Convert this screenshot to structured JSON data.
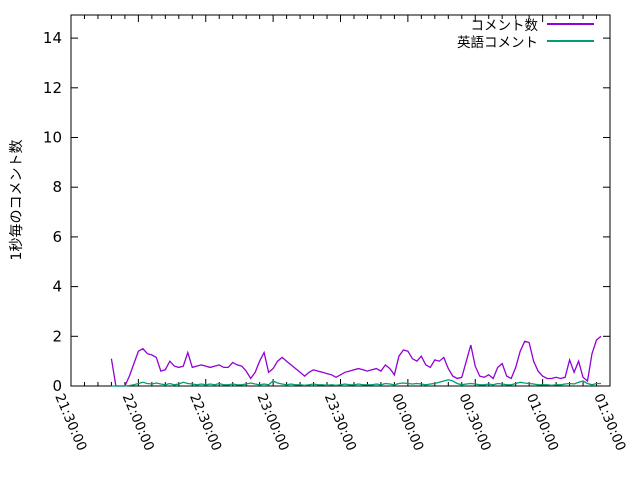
{
  "chart_data": {
    "type": "line",
    "title": "",
    "xlabel": "",
    "ylabel": "1秒毎のコメント数",
    "ylim": [
      0,
      14.93
    ],
    "yticks": [
      0,
      2,
      4,
      6,
      8,
      10,
      12,
      14
    ],
    "xticks": [
      "21:30:00",
      "22:00:00",
      "22:30:00",
      "23:00:00",
      "23:30:00",
      "00:00:00",
      "00:30:00",
      "01:00:00",
      "01:30:00"
    ],
    "x_minor_per_major": 5,
    "grid": false,
    "legend_position": "top-right",
    "axis_color": "#000000",
    "background_color": "#ffffff",
    "x": [
      "21:48",
      "21:50",
      "21:52",
      "21:54",
      "21:56",
      "21:58",
      "22:00",
      "22:02",
      "22:04",
      "22:06",
      "22:08",
      "22:10",
      "22:12",
      "22:14",
      "22:16",
      "22:18",
      "22:20",
      "22:22",
      "22:24",
      "22:26",
      "22:28",
      "22:30",
      "22:32",
      "22:34",
      "22:36",
      "22:38",
      "22:40",
      "22:42",
      "22:44",
      "22:46",
      "22:48",
      "22:50",
      "22:52",
      "22:54",
      "22:56",
      "22:58",
      "23:00",
      "23:02",
      "23:04",
      "23:06",
      "23:08",
      "23:10",
      "23:12",
      "23:14",
      "23:16",
      "23:18",
      "23:20",
      "23:22",
      "23:24",
      "23:26",
      "23:28",
      "23:30",
      "23:32",
      "23:34",
      "23:36",
      "23:38",
      "23:40",
      "23:42",
      "23:44",
      "23:46",
      "23:48",
      "23:50",
      "23:52",
      "23:54",
      "23:56",
      "23:58",
      "00:00",
      "00:02",
      "00:04",
      "00:06",
      "00:08",
      "00:10",
      "00:12",
      "00:14",
      "00:16",
      "00:18",
      "00:20",
      "00:22",
      "00:24",
      "00:26",
      "00:28",
      "00:30",
      "00:32",
      "00:34",
      "00:36",
      "00:38",
      "00:40",
      "00:42",
      "00:44",
      "00:46",
      "00:48",
      "00:50",
      "00:52",
      "00:54",
      "00:56",
      "00:58",
      "01:00",
      "01:02",
      "01:04",
      "01:06",
      "01:08",
      "01:10",
      "01:12",
      "01:14",
      "01:16",
      "01:18",
      "01:20",
      "01:22",
      "01:24",
      "01:26"
    ],
    "series": [
      {
        "name": "コメント数",
        "color": "#9400d3",
        "values": [
          1.1,
          0,
          0,
          0,
          0.4,
          0.9,
          1.4,
          1.5,
          1.3,
          1.25,
          1.15,
          0.6,
          0.65,
          1.0,
          0.8,
          0.75,
          0.8,
          1.35,
          0.75,
          0.8,
          0.85,
          0.8,
          0.75,
          0.8,
          0.85,
          0.75,
          0.75,
          0.95,
          0.85,
          0.8,
          0.6,
          0.3,
          0.55,
          1.0,
          1.35,
          0.55,
          0.7,
          1.0,
          1.15,
          1.0,
          0.85,
          0.7,
          0.55,
          0.4,
          0.55,
          0.65,
          0.6,
          0.55,
          0.5,
          0.45,
          0.35,
          0.45,
          0.55,
          0.6,
          0.65,
          0.7,
          0.65,
          0.6,
          0.65,
          0.7,
          0.6,
          0.85,
          0.7,
          0.45,
          1.2,
          1.45,
          1.4,
          1.1,
          1.0,
          1.2,
          0.85,
          0.75,
          1.05,
          1.0,
          1.15,
          0.7,
          0.4,
          0.3,
          0.35,
          1.0,
          1.65,
          0.8,
          0.4,
          0.35,
          0.45,
          0.3,
          0.75,
          0.9,
          0.4,
          0.3,
          0.75,
          1.4,
          1.8,
          1.75,
          1.0,
          0.6,
          0.4,
          0.3,
          0.3,
          0.35,
          0.3,
          0.35,
          1.05,
          0.55,
          1.0,
          0.35,
          0.2,
          1.3,
          1.85,
          2.0
        ]
      },
      {
        "name": "英語コメント",
        "color": "#009e73",
        "values": [
          0,
          0,
          0,
          0,
          0.02,
          0.05,
          0.1,
          0.15,
          0.1,
          0.08,
          0.12,
          0.08,
          0.05,
          0.1,
          0.05,
          0.08,
          0.15,
          0.1,
          0.08,
          0.05,
          0.08,
          0.05,
          0.08,
          0.05,
          0.1,
          0.05,
          0.05,
          0.08,
          0.05,
          0.05,
          0.08,
          0.12,
          0.08,
          0.05,
          0.08,
          0.05,
          0.2,
          0.12,
          0.08,
          0.05,
          0.08,
          0.05,
          0.05,
          0.03,
          0.05,
          0.08,
          0.05,
          0.05,
          0.03,
          0.05,
          0.03,
          0.05,
          0.08,
          0.05,
          0.05,
          0.08,
          0.05,
          0.05,
          0.05,
          0.08,
          0.05,
          0.1,
          0.08,
          0.05,
          0.1,
          0.12,
          0.1,
          0.08,
          0.1,
          0.08,
          0.05,
          0.08,
          0.1,
          0.15,
          0.2,
          0.25,
          0.2,
          0.1,
          0.05,
          0.08,
          0.1,
          0.08,
          0.05,
          0.05,
          0.08,
          0.05,
          0.1,
          0.08,
          0.05,
          0.05,
          0.1,
          0.15,
          0.12,
          0.1,
          0.08,
          0.05,
          0.05,
          0.05,
          0.03,
          0.05,
          0.05,
          0.08,
          0.1,
          0.08,
          0.15,
          0.2,
          0.1,
          0.05,
          0.1,
          0.1
        ]
      }
    ]
  }
}
